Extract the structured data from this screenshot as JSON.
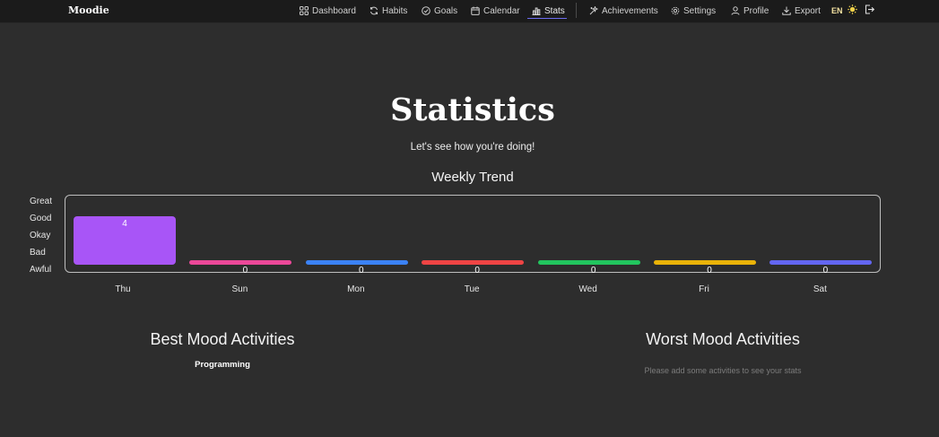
{
  "brand": "Moodie",
  "nav": {
    "items": [
      {
        "label": "Dashboard",
        "icon": "dashboard-icon"
      },
      {
        "label": "Habits",
        "icon": "habits-icon"
      },
      {
        "label": "Goals",
        "icon": "goals-icon"
      },
      {
        "label": "Calendar",
        "icon": "calendar-icon"
      },
      {
        "label": "Stats",
        "icon": "stats-icon",
        "active": true
      },
      {
        "label": "Achievements",
        "icon": "achievements-icon"
      },
      {
        "label": "Settings",
        "icon": "settings-icon"
      },
      {
        "label": "Profile",
        "icon": "profile-icon"
      },
      {
        "label": "Export",
        "icon": "export-icon"
      }
    ],
    "language": "EN",
    "theme_icon": "sun-icon",
    "logout_icon": "logout-icon"
  },
  "page": {
    "title": "Statistics",
    "subtitle": "Let's see how you're doing!"
  },
  "chart_data": {
    "type": "bar",
    "title": "Weekly Trend",
    "y_tick_labels": [
      "Great",
      "Good",
      "Okay",
      "Bad",
      "Awful"
    ],
    "categories": [
      "Thu",
      "Sun",
      "Mon",
      "Tue",
      "Wed",
      "Fri",
      "Sat"
    ],
    "values": [
      4,
      0,
      0,
      0,
      0,
      0,
      0
    ],
    "colors": [
      "#a855f7",
      "#ec4899",
      "#3b82f6",
      "#ef4444",
      "#22c55e",
      "#eab308",
      "#6366f1"
    ],
    "grid": false
  },
  "activities": {
    "best_title": "Best Mood Activities",
    "best_items": [
      "Programming"
    ],
    "worst_title": "Worst Mood Activities",
    "worst_empty": "Please add some activities to see your stats"
  }
}
